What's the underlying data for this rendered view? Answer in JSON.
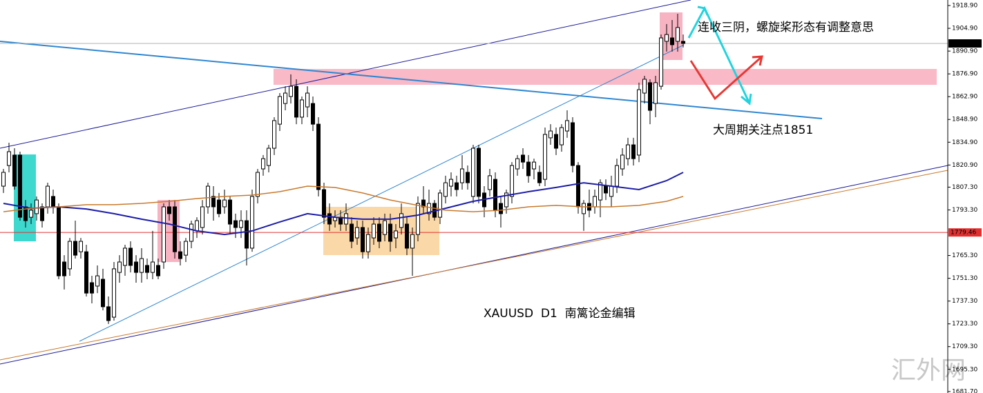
{
  "chart_data": {
    "type": "candlestick",
    "ylim": [
      1680.8,
      1922.3
    ],
    "xlim": [
      -0.625,
      170.875
    ],
    "yticks": [
      {
        "value": 1918.9,
        "label": "1918.90"
      },
      {
        "value": 1904.9,
        "label": "1904.90"
      },
      {
        "value": 1890.9,
        "label": "1890.90"
      },
      {
        "value": 1876.9,
        "label": "1876.90"
      },
      {
        "value": 1862.9,
        "label": "1862.90"
      },
      {
        "value": 1848.9,
        "label": "1848.90"
      },
      {
        "value": 1834.9,
        "label": "1834.90"
      },
      {
        "value": 1820.9,
        "label": "1820.90"
      },
      {
        "value": 1807.3,
        "label": "1807.30"
      },
      {
        "value": 1793.3,
        "label": "1793.30"
      },
      {
        "value": 1765.3,
        "label": "1765.30"
      },
      {
        "value": 1751.3,
        "label": "1751.30"
      },
      {
        "value": 1737.3,
        "label": "1737.30"
      },
      {
        "value": 1723.3,
        "label": "1723.30"
      },
      {
        "value": 1709.3,
        "label": "1709.30"
      },
      {
        "value": 1695.3,
        "label": "1695.30"
      },
      {
        "value": 1681.7,
        "label": "1681.70"
      }
    ],
    "up_color": "#ffffff",
    "down_color": "#000000",
    "candles": [
      [
        1807.9,
        1818.5,
        1803.7,
        1816.4
      ],
      [
        1820.6,
        1834.6,
        1816.4,
        1829.1
      ],
      [
        1827.0,
        1831.2,
        1805.8,
        1807.9
      ],
      [
        1827.0,
        1829.1,
        1786.7,
        1788.8
      ],
      [
        1795.2,
        1799.4,
        1782.5,
        1786.7
      ],
      [
        1788.8,
        1797.3,
        1784.6,
        1793.1
      ],
      [
        1791.0,
        1801.6,
        1786.7,
        1799.4
      ],
      [
        1795.2,
        1797.3,
        1782.5,
        1786.7
      ],
      [
        1795.2,
        1810.0,
        1791.0,
        1807.9
      ],
      [
        1801.6,
        1805.8,
        1791.0,
        1795.2
      ],
      [
        1795.2,
        1797.3,
        1750.7,
        1752.8
      ],
      [
        1761.3,
        1765.5,
        1744.4,
        1752.8
      ],
      [
        1757.1,
        1776.1,
        1752.8,
        1774.0
      ],
      [
        1774.0,
        1786.7,
        1763.4,
        1765.5
      ],
      [
        1767.6,
        1776.1,
        1763.4,
        1774.0
      ],
      [
        1767.6,
        1771.9,
        1740.1,
        1742.2
      ],
      [
        1748.6,
        1752.8,
        1735.9,
        1742.2
      ],
      [
        1746.5,
        1759.2,
        1742.2,
        1752.8
      ],
      [
        1750.7,
        1757.1,
        1731.6,
        1733.8
      ],
      [
        1733.8,
        1740.1,
        1723.2,
        1725.3
      ],
      [
        1727.4,
        1761.3,
        1725.3,
        1757.1
      ],
      [
        1754.9,
        1765.5,
        1748.6,
        1761.3
      ],
      [
        1759.2,
        1771.9,
        1752.8,
        1769.8
      ],
      [
        1769.8,
        1774.0,
        1754.9,
        1759.2
      ],
      [
        1761.3,
        1765.5,
        1748.6,
        1754.9
      ],
      [
        1754.9,
        1769.8,
        1748.6,
        1763.4
      ],
      [
        1759.2,
        1763.4,
        1750.7,
        1754.9
      ],
      [
        1754.9,
        1780.4,
        1750.7,
        1761.3
      ],
      [
        1759.2,
        1763.4,
        1750.7,
        1752.8
      ],
      [
        1761.3,
        1797.3,
        1757.1,
        1795.2
      ],
      [
        1795.2,
        1799.4,
        1786.7,
        1791.0
      ],
      [
        1795.2,
        1799.4,
        1763.4,
        1767.6
      ],
      [
        1767.6,
        1774.0,
        1759.2,
        1763.4
      ],
      [
        1765.5,
        1776.1,
        1761.3,
        1774.0
      ],
      [
        1774.0,
        1786.7,
        1769.8,
        1784.6
      ],
      [
        1780.4,
        1788.8,
        1776.1,
        1786.7
      ],
      [
        1782.5,
        1799.4,
        1778.2,
        1795.2
      ],
      [
        1795.2,
        1810.0,
        1791.0,
        1807.9
      ],
      [
        1801.6,
        1807.9,
        1786.7,
        1795.2
      ],
      [
        1799.4,
        1803.7,
        1788.8,
        1791.0
      ],
      [
        1795.2,
        1805.8,
        1791.0,
        1799.4
      ],
      [
        1799.4,
        1801.6,
        1778.2,
        1784.6
      ],
      [
        1786.7,
        1791.0,
        1776.1,
        1782.5
      ],
      [
        1782.5,
        1793.1,
        1776.1,
        1786.7
      ],
      [
        1786.7,
        1793.1,
        1759.2,
        1769.8
      ],
      [
        1769.8,
        1805.8,
        1767.6,
        1801.6
      ],
      [
        1801.6,
        1818.5,
        1797.3,
        1816.4
      ],
      [
        1818.5,
        1827.0,
        1814.3,
        1824.8
      ],
      [
        1820.6,
        1833.3,
        1816.4,
        1831.2
      ],
      [
        1831.2,
        1850.3,
        1827.0,
        1848.2
      ],
      [
        1846.0,
        1865.1,
        1841.8,
        1863.0
      ],
      [
        1858.7,
        1869.3,
        1854.5,
        1865.1
      ],
      [
        1863.0,
        1876.6,
        1858.7,
        1869.3
      ],
      [
        1869.3,
        1873.6,
        1846.0,
        1850.3
      ],
      [
        1850.3,
        1863.0,
        1846.0,
        1860.9
      ],
      [
        1856.6,
        1869.3,
        1850.3,
        1865.1
      ],
      [
        1858.7,
        1863.0,
        1841.8,
        1846.0
      ],
      [
        1846.0,
        1850.3,
        1801.6,
        1805.8
      ],
      [
        1805.8,
        1810.0,
        1784.6,
        1788.8
      ],
      [
        1791.0,
        1797.3,
        1780.4,
        1784.6
      ],
      [
        1786.7,
        1793.1,
        1782.5,
        1788.8
      ],
      [
        1788.8,
        1793.1,
        1780.4,
        1784.6
      ],
      [
        1784.6,
        1797.3,
        1780.4,
        1791.0
      ],
      [
        1784.6,
        1788.8,
        1769.8,
        1774.0
      ],
      [
        1776.1,
        1786.7,
        1771.9,
        1782.5
      ],
      [
        1782.5,
        1786.7,
        1763.4,
        1767.6
      ],
      [
        1767.6,
        1782.5,
        1763.4,
        1778.2
      ],
      [
        1776.1,
        1788.8,
        1771.9,
        1784.6
      ],
      [
        1784.6,
        1788.8,
        1769.8,
        1774.0
      ],
      [
        1778.2,
        1791.0,
        1774.0,
        1786.7
      ],
      [
        1784.6,
        1791.0,
        1767.6,
        1774.0
      ],
      [
        1776.1,
        1784.6,
        1769.8,
        1780.4
      ],
      [
        1782.5,
        1797.3,
        1778.2,
        1791.0
      ],
      [
        1784.6,
        1788.8,
        1765.5,
        1769.8
      ],
      [
        1769.8,
        1782.5,
        1752.8,
        1778.2
      ],
      [
        1778.2,
        1801.6,
        1774.0,
        1797.3
      ],
      [
        1799.4,
        1807.9,
        1791.0,
        1795.2
      ],
      [
        1791.0,
        1805.8,
        1786.7,
        1797.3
      ],
      [
        1797.3,
        1799.4,
        1786.7,
        1788.8
      ],
      [
        1788.8,
        1805.8,
        1784.6,
        1803.7
      ],
      [
        1801.6,
        1814.3,
        1797.3,
        1810.0
      ],
      [
        1807.9,
        1816.4,
        1801.6,
        1812.1
      ],
      [
        1810.0,
        1814.3,
        1801.6,
        1805.8
      ],
      [
        1810.0,
        1827.0,
        1805.8,
        1818.5
      ],
      [
        1816.4,
        1820.6,
        1805.8,
        1810.0
      ],
      [
        1801.6,
        1833.3,
        1797.3,
        1831.2
      ],
      [
        1831.2,
        1833.3,
        1797.3,
        1801.6
      ],
      [
        1803.7,
        1807.9,
        1788.8,
        1795.2
      ],
      [
        1805.8,
        1818.5,
        1801.6,
        1814.3
      ],
      [
        1812.1,
        1816.4,
        1788.8,
        1793.1
      ],
      [
        1797.3,
        1801.6,
        1782.5,
        1791.0
      ],
      [
        1795.2,
        1805.8,
        1791.0,
        1803.7
      ],
      [
        1801.6,
        1822.7,
        1797.3,
        1820.6
      ],
      [
        1818.5,
        1827.0,
        1814.3,
        1824.8
      ],
      [
        1827.0,
        1831.2,
        1818.5,
        1822.7
      ],
      [
        1822.7,
        1827.0,
        1810.0,
        1814.3
      ],
      [
        1818.5,
        1824.8,
        1812.1,
        1822.7
      ],
      [
        1816.4,
        1820.6,
        1807.9,
        1810.0
      ],
      [
        1812.1,
        1843.9,
        1807.9,
        1839.7
      ],
      [
        1837.6,
        1846.0,
        1833.3,
        1841.8
      ],
      [
        1839.7,
        1843.9,
        1827.0,
        1831.2
      ],
      [
        1833.3,
        1846.0,
        1829.1,
        1843.9
      ],
      [
        1841.8,
        1854.5,
        1837.6,
        1848.2
      ],
      [
        1846.9,
        1850.3,
        1816.4,
        1820.6
      ],
      [
        1820.6,
        1822.7,
        1791.0,
        1795.2
      ],
      [
        1791.0,
        1799.4,
        1780.4,
        1797.3
      ],
      [
        1797.3,
        1805.8,
        1788.8,
        1793.1
      ],
      [
        1795.2,
        1805.8,
        1791.0,
        1801.6
      ],
      [
        1799.4,
        1812.1,
        1788.8,
        1810.0
      ],
      [
        1807.9,
        1812.1,
        1799.4,
        1803.7
      ],
      [
        1801.6,
        1814.3,
        1795.2,
        1807.9
      ],
      [
        1807.9,
        1824.8,
        1803.7,
        1820.6
      ],
      [
        1818.5,
        1831.2,
        1814.3,
        1827.0
      ],
      [
        1824.8,
        1837.6,
        1820.6,
        1833.3
      ],
      [
        1833.3,
        1837.6,
        1820.6,
        1824.8
      ],
      [
        1827.0,
        1871.5,
        1822.7,
        1867.2
      ],
      [
        1865.1,
        1875.7,
        1858.7,
        1873.6
      ],
      [
        1871.5,
        1873.6,
        1846.0,
        1854.5
      ],
      [
        1858.7,
        1875.7,
        1850.3,
        1871.5
      ],
      [
        1869.3,
        1901.1,
        1867.2,
        1899.0
      ],
      [
        1896.9,
        1907.5,
        1890.6,
        1901.1
      ],
      [
        1899.0,
        1910.0,
        1890.6,
        1894.8
      ],
      [
        1896.9,
        1913.8,
        1890.6,
        1905.4
      ],
      [
        1896.9,
        1901.1,
        1893.1,
        1895.6
      ]
    ],
    "series": [
      {
        "color": "#1c1ca8",
        "x": [
          0,
          5,
          10,
          15,
          20,
          25,
          30,
          35,
          40,
          45,
          50,
          55,
          60,
          65,
          70,
          75,
          80,
          85,
          90,
          95,
          100,
          105,
          110,
          115,
          120,
          123
        ],
        "values": [
          1797.3,
          1794.3,
          1795.2,
          1793.9,
          1791.0,
          1787.6,
          1784.6,
          1780.4,
          1778.2,
          1780.4,
          1785.9,
          1791.0,
          1788.8,
          1787.6,
          1787.6,
          1790.1,
          1794.3,
          1798.6,
          1801.6,
          1804.5,
          1807.1,
          1810.0,
          1807.9,
          1805.8,
          1811.3,
          1816.4
        ]
      },
      {
        "color": "#c8782a",
        "x": [
          0,
          5,
          10,
          15,
          20,
          25,
          30,
          35,
          40,
          45,
          50,
          55,
          60,
          65,
          70,
          75,
          80,
          85,
          90,
          95,
          100,
          105,
          110,
          115,
          120,
          123
        ],
        "values": [
          1792.2,
          1794.3,
          1795.2,
          1796.5,
          1796.5,
          1797.3,
          1798.6,
          1800.3,
          1801.6,
          1802.4,
          1804.5,
          1807.9,
          1807.1,
          1803.7,
          1799.4,
          1796.1,
          1793.1,
          1792.2,
          1793.1,
          1795.2,
          1796.1,
          1795.2,
          1795.2,
          1796.1,
          1798.6,
          1801.6
        ]
      }
    ],
    "price_lines": [
      {
        "value": 1895.61,
        "color": "#b0b0b0",
        "label_color": "#000000"
      },
      {
        "value": 1779.46,
        "color": "#e03030",
        "label_color": "#e03030"
      }
    ],
    "annotations": [
      "连收三阴，螺旋桨形态有调整意思",
      "大周期关注点1851"
    ],
    "caption": "XAUUSD  D1  南篱论金编辑",
    "watermark": "汇外网"
  }
}
